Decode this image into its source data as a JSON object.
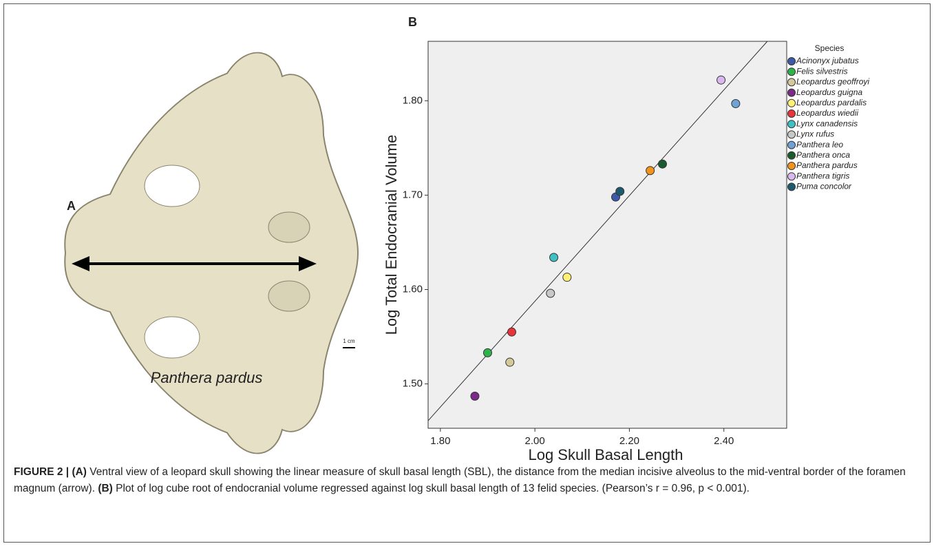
{
  "panel_a": {
    "label": "A",
    "scale_bar": "1 cm",
    "species": "Panthera pardus"
  },
  "chart_data": {
    "type": "scatter",
    "panel_label": "B",
    "x_label": "Log Skull Basal Length",
    "y_label": "Log Total Endocranial Volume",
    "legend_title": "Species",
    "legend": "right",
    "xlim": [
      1.774,
      2.533
    ],
    "ylim": [
      1.453,
      1.863
    ],
    "xticks": [
      {
        "value": 1.8,
        "label": "1.80"
      },
      {
        "value": 2.0,
        "label": "2.00"
      },
      {
        "value": 2.2,
        "label": "2.20"
      },
      {
        "value": 2.4,
        "label": "2.40"
      }
    ],
    "yticks": [
      {
        "value": 1.5,
        "label": "1.50"
      },
      {
        "value": 1.6,
        "label": "1.60"
      },
      {
        "value": 1.7,
        "label": "1.70"
      },
      {
        "value": 1.8,
        "label": "1.80"
      }
    ],
    "background": "#efefef",
    "reference_line": {
      "x": [
        1.774,
        2.492
      ],
      "y": [
        1.461,
        1.863
      ]
    },
    "series": [
      {
        "name": "Acinonyx jubatus",
        "color": "#3d5aa8",
        "x": [
          2.171
        ],
        "values": [
          1.698
        ]
      },
      {
        "name": "Felis silvestris",
        "color": "#2db34a",
        "x": [
          1.9
        ],
        "values": [
          1.533
        ]
      },
      {
        "name": "Leopardus geoffroyi",
        "color": "#d4c99a",
        "x": [
          1.947
        ],
        "values": [
          1.523
        ]
      },
      {
        "name": "Leopardus guigna",
        "color": "#7b2a8a",
        "x": [
          1.873
        ],
        "values": [
          1.487
        ]
      },
      {
        "name": "Leopardus pardalis",
        "color": "#fff176",
        "x": [
          2.068
        ],
        "values": [
          1.613
        ]
      },
      {
        "name": "Leopardus wiedii",
        "color": "#e8333a",
        "x": [
          1.951
        ],
        "values": [
          1.555
        ]
      },
      {
        "name": "Lynx canadensis",
        "color": "#3ec0c4",
        "x": [
          2.04
        ],
        "values": [
          1.634
        ]
      },
      {
        "name": "Lynx rufus",
        "color": "#c8c8c8",
        "x": [
          2.033
        ],
        "values": [
          1.596
        ]
      },
      {
        "name": "Panthera leo",
        "color": "#6fa3d6",
        "x": [
          2.425
        ],
        "values": [
          1.797
        ]
      },
      {
        "name": "Panthera onca",
        "color": "#1a5a2e",
        "x": [
          2.27
        ],
        "values": [
          1.733
        ]
      },
      {
        "name": "Panthera pardus",
        "color": "#f0941e",
        "x": [
          2.244
        ],
        "values": [
          1.726
        ]
      },
      {
        "name": "Panthera tigris",
        "color": "#d9b8ee",
        "x": [
          2.394
        ],
        "values": [
          1.822
        ]
      },
      {
        "name": "Puma concolor",
        "color": "#1e5a6e",
        "x": [
          2.18
        ],
        "values": [
          1.704
        ]
      }
    ]
  },
  "caption": {
    "figure_label": "FIGURE 2 |",
    "a_label": "(A)",
    "a_text": " Ventral view of a leopard skull showing the linear measure of skull basal length (SBL), the distance from the median incisive alveolus to the mid-ventral border of the foramen magnum (arrow). ",
    "b_label": "(B)",
    "b_text": " Plot of log cube root of endocranial volume regressed against log skull basal length of 13 felid species. (Pearson’s r = 0.96, p < 0.001)."
  }
}
